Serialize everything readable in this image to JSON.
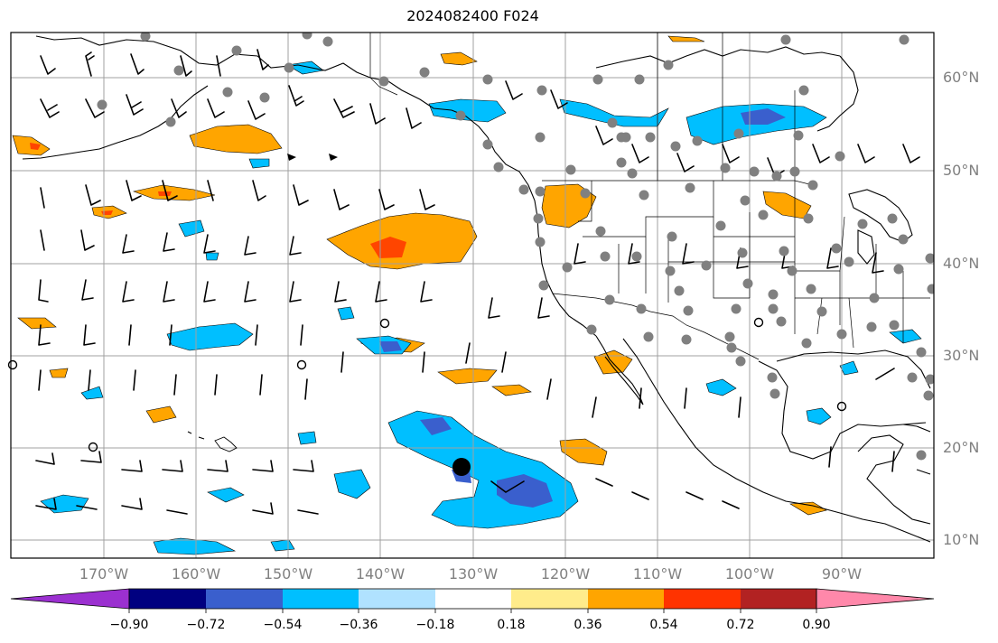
{
  "title": "2024082400 F024",
  "lat_labels": [
    "60°N",
    "50°N",
    "40°N",
    "30°N",
    "20°N",
    "10°N"
  ],
  "lon_labels": [
    "170°W",
    "160°W",
    "150°W",
    "140°W",
    "130°W",
    "120°W",
    "110°W",
    "100°W",
    "90°W"
  ],
  "colorbar": {
    "tick_labels": [
      "−0.90",
      "−0.72",
      "−0.54",
      "−0.36",
      "−0.18",
      "0.18",
      "0.36",
      "0.54",
      "0.72",
      "0.90"
    ],
    "colors": [
      "#9b30d0",
      "#000080",
      "#3a5fcd",
      "#00bfff",
      "#b0e2ff",
      "#ffffff",
      "#ffec8b",
      "#ffa500",
      "#ff3300",
      "#b22222",
      "#ff88aa",
      "#ff88aa"
    ]
  },
  "colors": {
    "orange": "#ffa500",
    "red_orange": "#ff4500",
    "sky": "#00bfff",
    "blue": "#3a5fcd",
    "station": "#808080"
  }
}
